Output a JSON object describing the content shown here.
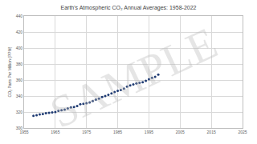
{
  "chart_data": {
    "type": "scatter",
    "title": "Earth's Atmospheric CO₂ Annual Averages: 1958-2022",
    "y_label": "CO₂ Parts Per Million (PPM)",
    "annotations": [
      "SAMPLE"
    ],
    "x": [
      1958,
      1959,
      1960,
      1961,
      1962,
      1963,
      1964,
      1965,
      1966,
      1967,
      1968,
      1969,
      1970,
      1971,
      1972,
      1973,
      1974,
      1975,
      1976,
      1977,
      1978,
      1979,
      1980,
      1981,
      1982,
      1983,
      1984,
      1985,
      1986,
      1987,
      1988,
      1989,
      1990,
      1991,
      1992,
      1993,
      1994,
      1995,
      1996,
      1997,
      1998
    ],
    "values": [
      315.2,
      316.0,
      316.9,
      317.6,
      318.5,
      319.0,
      319.6,
      320.0,
      321.4,
      322.2,
      323.1,
      324.6,
      325.7,
      326.3,
      327.5,
      329.7,
      330.2,
      331.1,
      332.0,
      333.8,
      335.4,
      336.8,
      338.8,
      340.1,
      341.5,
      343.2,
      344.9,
      346.4,
      347.6,
      349.3,
      351.7,
      353.2,
      354.5,
      355.7,
      356.5,
      357.2,
      359.0,
      361.0,
      362.7,
      363.9,
      366.8
    ],
    "color": "#1f3b73",
    "marker": "circle",
    "xlim": [
      1955,
      2025
    ],
    "xticks": [
      1955,
      1965,
      1975,
      1985,
      1995,
      2005,
      2015,
      2025
    ],
    "ylim": [
      300,
      440
    ],
    "yticks": [
      300,
      320,
      340,
      360,
      380,
      400,
      420,
      440
    ],
    "grid": true
  }
}
